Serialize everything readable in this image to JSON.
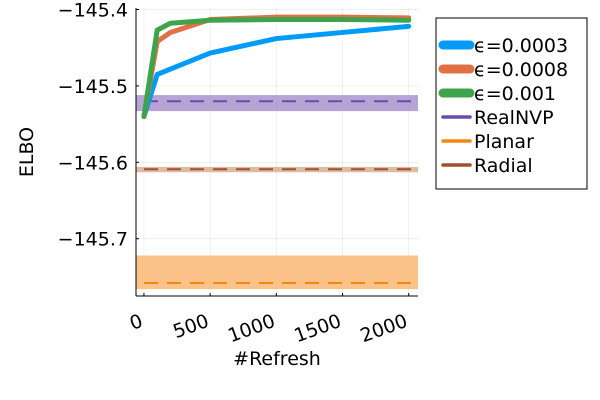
{
  "chart_data": {
    "type": "line",
    "xlabel": "#Refresh",
    "ylabel": "ELBO",
    "xlim": [
      -60,
      2070
    ],
    "ylim": [
      -145.775,
      -145.398
    ],
    "xticks": [
      0,
      500,
      1000,
      1500,
      2000
    ],
    "xtick_labels": [
      "0",
      "500",
      "1000",
      "1500",
      "2000"
    ],
    "yticks": [
      -145.4,
      -145.5,
      -145.6,
      -145.7
    ],
    "ytick_labels": [
      "−145.4",
      "−145.5",
      "−145.6",
      "−145.7"
    ],
    "grid": true,
    "legend_position": "right",
    "series": [
      {
        "name": "ϵ=0.0003",
        "color": "#009af9",
        "style": "solid",
        "x": [
          0,
          100,
          200,
          500,
          1000,
          1500,
          2000
        ],
        "y": [
          -145.54,
          -145.485,
          -145.478,
          -145.457,
          -145.438,
          -145.43,
          -145.422
        ]
      },
      {
        "name": "ϵ=0.0008",
        "color": "#e26f46",
        "style": "solid",
        "x": [
          0,
          100,
          200,
          500,
          1000,
          1500,
          2000
        ],
        "y": [
          -145.54,
          -145.442,
          -145.43,
          -145.413,
          -145.41,
          -145.41,
          -145.411
        ]
      },
      {
        "name": "ϵ=0.001",
        "color": "#3da44d",
        "style": "solid",
        "x": [
          0,
          100,
          200,
          500,
          1000,
          1500,
          2000
        ],
        "y": [
          -145.54,
          -145.427,
          -145.418,
          -145.414,
          -145.413,
          -145.413,
          -145.414
        ]
      }
    ],
    "baselines": [
      {
        "name": "RealNVP",
        "color": "#6b4ba8",
        "band_color": "#a58dc9",
        "mean": -145.52,
        "low": -145.533,
        "high": -145.512
      },
      {
        "name": "Planar",
        "color": "#f08a0f",
        "band_color": "#fcb26d",
        "mean": -145.758,
        "low": -145.766,
        "high": -145.722
      },
      {
        "name": "Radial",
        "color": "#a0522d",
        "band_color": "#d6a98f",
        "mean": -145.609,
        "low": -145.613,
        "high": -145.606
      }
    ]
  }
}
